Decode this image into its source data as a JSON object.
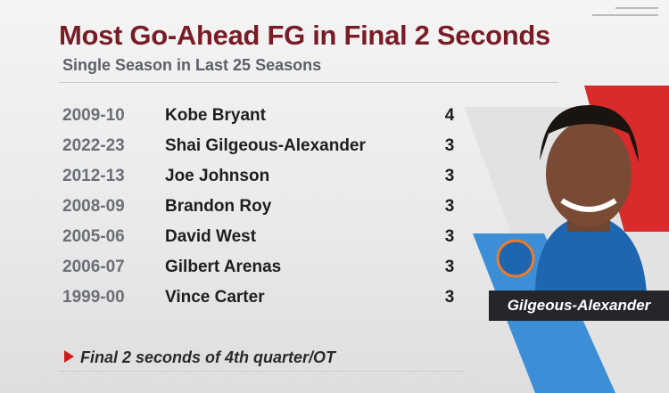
{
  "header": {
    "title": "Most Go-Ahead FG in Final 2 Seconds",
    "subtitle": "Single Season in Last 25 Seasons"
  },
  "table": {
    "rows": [
      [
        "2009-10",
        "Kobe Bryant",
        4
      ],
      [
        "2022-23",
        "Shai Gilgeous-Alexander",
        3
      ],
      [
        "2012-13",
        "Joe Johnson",
        3
      ],
      [
        "2008-09",
        "Brandon Roy",
        3
      ],
      [
        "2005-06",
        "David West",
        3
      ],
      [
        "2006-07",
        "Gilbert Arenas",
        3
      ],
      [
        "1999-00",
        "Vince Carter",
        3
      ]
    ]
  },
  "footnote": "Final 2 seconds of 4th quarter/OT",
  "player_card": {
    "name": "Gilgeous-Alexander"
  }
}
